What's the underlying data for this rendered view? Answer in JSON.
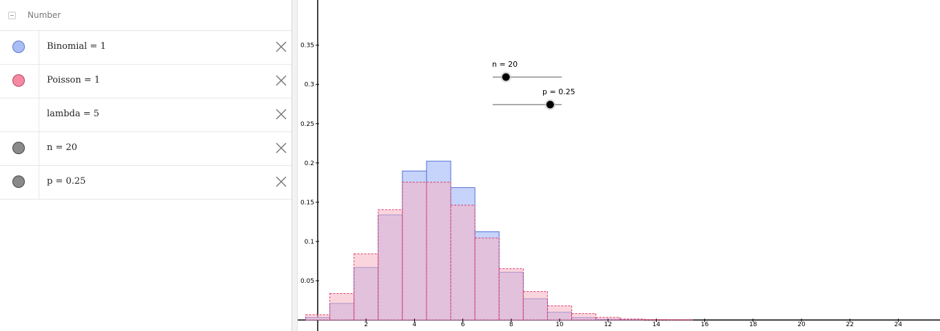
{
  "algebra": {
    "group_label": "Number",
    "items": [
      {
        "label": "Binomial = 1",
        "color": "#a9bdf7",
        "stroke": "#5a76c8",
        "has_marble": true
      },
      {
        "label": "Poisson = 1",
        "color": "#f58aa3",
        "stroke": "#b84060",
        "has_marble": true
      },
      {
        "label": "lambda = 5",
        "color": "",
        "stroke": "",
        "has_marble": false
      },
      {
        "label": "n = 20",
        "color": "#8a8a8a",
        "stroke": "#444444",
        "has_marble": true
      },
      {
        "label": "p = 0.25",
        "color": "#8a8a8a",
        "stroke": "#444444",
        "has_marble": true
      }
    ]
  },
  "sliders": {
    "n": {
      "label": "n = 20",
      "value": 20,
      "min": 1,
      "max": 100
    },
    "p": {
      "label": "p = 0.25",
      "value": 0.25,
      "min": 0,
      "max": 0.3
    }
  },
  "chart_data": {
    "type": "bar",
    "xlim": [
      -0.5,
      25.7
    ],
    "ylim": [
      -0.01,
      0.38
    ],
    "x_ticks": [
      2,
      4,
      6,
      8,
      10,
      12,
      14,
      16,
      18,
      20,
      22,
      24
    ],
    "y_ticks": [
      0.05,
      0.1,
      0.15,
      0.2,
      0.25,
      0.3,
      0.35
    ],
    "y_tick_labels": [
      "0.05",
      "0.1",
      "0.15",
      "0.2",
      "0.25",
      "0.3",
      "0.35"
    ],
    "series": [
      {
        "name": "Binomial",
        "fill": "#c6d3fa",
        "stroke": "#4f6fd6",
        "dashed": false,
        "x": [
          0,
          1,
          2,
          3,
          4,
          5,
          6,
          7,
          8,
          9,
          10,
          11,
          12,
          13,
          14,
          15,
          16,
          17,
          18,
          19,
          20
        ],
        "values": [
          0.0032,
          0.0211,
          0.0669,
          0.1339,
          0.1897,
          0.2023,
          0.1686,
          0.1124,
          0.0609,
          0.0271,
          0.0099,
          0.003,
          0.0008,
          0.0002,
          0,
          0,
          0,
          0,
          0,
          0,
          0
        ]
      },
      {
        "name": "Poisson",
        "fill": "#f7b3c2",
        "stroke": "#d63a6a",
        "dashed": true,
        "x": [
          0,
          1,
          2,
          3,
          4,
          5,
          6,
          7,
          8,
          9,
          10,
          11,
          12,
          13,
          14,
          15,
          16,
          17,
          18,
          19,
          20,
          21,
          22,
          23,
          24,
          25
        ],
        "values": [
          0.0067,
          0.0337,
          0.0842,
          0.1404,
          0.1755,
          0.1755,
          0.1462,
          0.1044,
          0.0653,
          0.0363,
          0.0181,
          0.0082,
          0.0034,
          0.0013,
          0.0005,
          0.0002,
          0,
          0,
          0,
          0,
          0,
          0,
          0,
          0,
          0,
          0
        ]
      }
    ]
  }
}
